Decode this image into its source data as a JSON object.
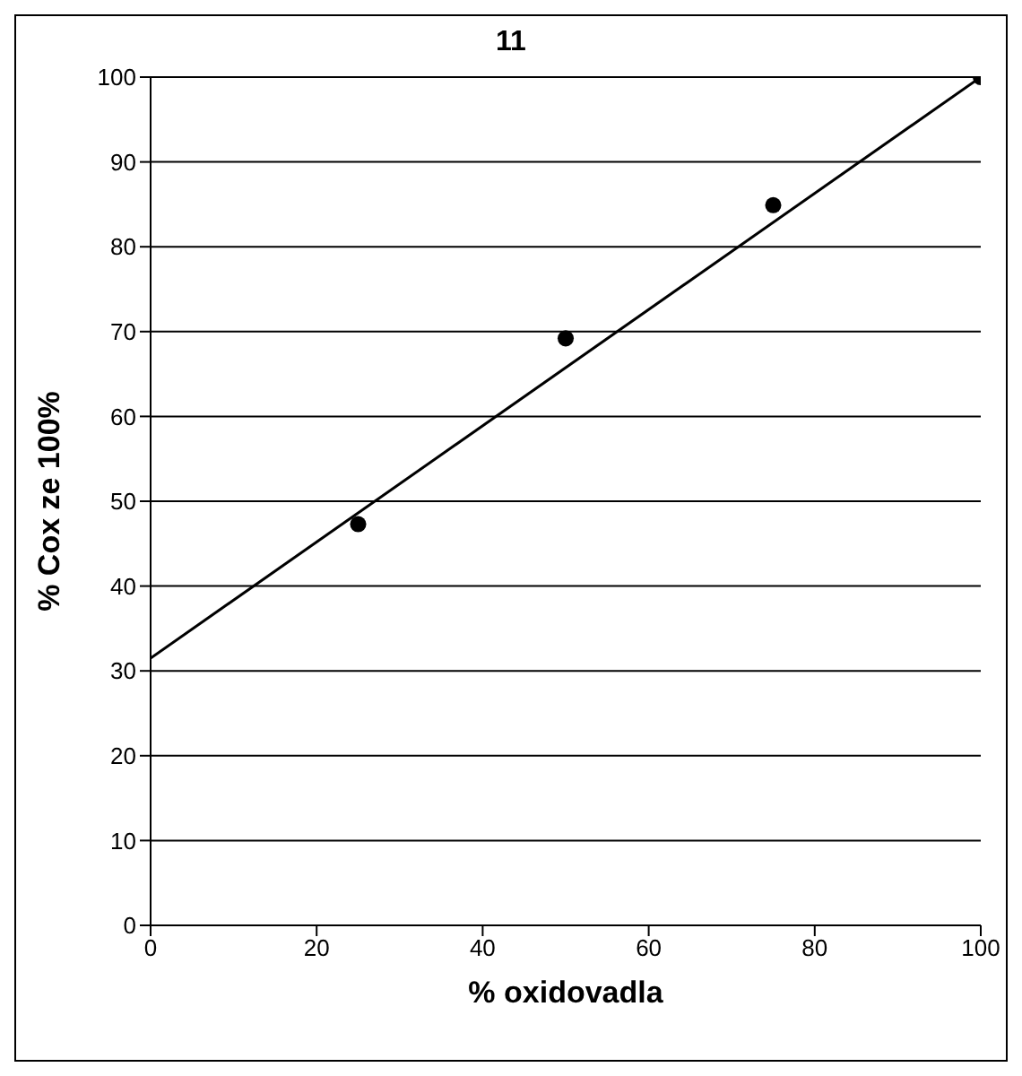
{
  "chart_data": {
    "type": "scatter",
    "title": "11",
    "xlabel": "% oxidovadla",
    "ylabel": "% Cox ze 100%",
    "x": [
      25,
      50,
      75,
      100
    ],
    "series": [
      {
        "color": "#000000",
        "values": [
          47.3,
          69.2,
          84.9,
          100
        ],
        "marker": "circle"
      },
      {
        "type": "line",
        "color": "#000000",
        "x": [
          0,
          100
        ],
        "values": [
          31.5,
          100
        ],
        "marker": "none"
      }
    ],
    "xlim": [
      0,
      100
    ],
    "xticks": [
      0,
      20,
      40,
      60,
      80,
      100
    ],
    "ylim": [
      0,
      100
    ],
    "yticks": [
      0,
      10,
      20,
      30,
      40,
      50,
      60,
      70,
      80,
      90,
      100
    ],
    "grid": "y"
  }
}
